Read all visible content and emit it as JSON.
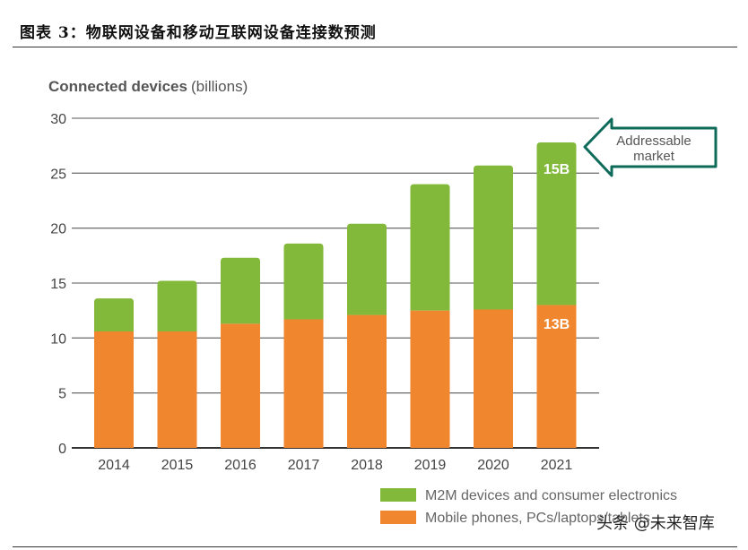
{
  "figure_title": "图表 3：物联网设备和移动互联网设备连接数预测",
  "watermark": "头条 @未来智库",
  "chart_data": {
    "type": "bar",
    "stacked": true,
    "title": "Connected devices",
    "title_unit": "(billions)",
    "categories": [
      "2014",
      "2015",
      "2016",
      "2017",
      "2018",
      "2019",
      "2020",
      "2021"
    ],
    "series": [
      {
        "name": "Mobile phones, PCs/laptops/tablets",
        "color": "#f0862e",
        "values": [
          10.6,
          10.6,
          11.3,
          11.7,
          12.1,
          12.5,
          12.6,
          13.0
        ]
      },
      {
        "name": "M2M devices and consumer electronics",
        "color": "#82b93a",
        "values": [
          3.0,
          4.6,
          6.0,
          6.9,
          8.3,
          11.5,
          13.1,
          14.8
        ]
      }
    ],
    "ylim": [
      0,
      30
    ],
    "yticks": [
      0,
      5,
      10,
      15,
      20,
      25,
      30
    ],
    "grid": true,
    "legend_placement": "bottom-right",
    "annotations": {
      "bar_labels_2021": [
        "13B",
        "15B"
      ],
      "callout": [
        "Addressable",
        "market"
      ],
      "callout_color": "#0e6b5a"
    }
  }
}
